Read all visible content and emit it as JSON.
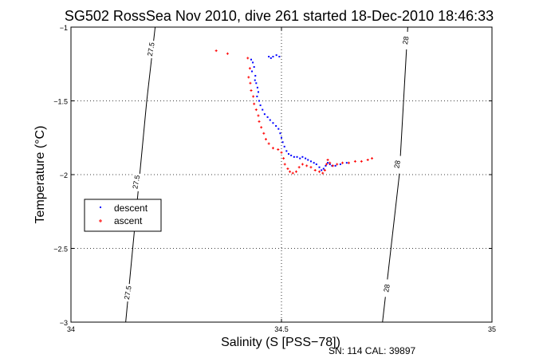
{
  "chart_data": {
    "type": "scatter",
    "title": "SG502 RossSea Nov 2010, dive 261 started 18-Dec-2010 18:46:33",
    "xlabel": "Salinity (S [PSS−78])",
    "ylabel": "Temperature (°C)",
    "xlim": [
      34,
      35
    ],
    "ylim": [
      -3,
      -1
    ],
    "xticks": [
      34,
      34.5,
      35
    ],
    "xtick_labels": [
      "34",
      "34.5",
      "35"
    ],
    "yticks": [
      -3,
      -2.5,
      -2,
      -1.5,
      -1
    ],
    "ytick_labels": [
      "−3",
      "−2.5",
      "−2",
      "−1.5",
      "−1"
    ],
    "grid": true,
    "legend_position": "left-middle",
    "footnote": "SN: 114  CAL: 39897",
    "density_contours": [
      {
        "label": "27.5",
        "points": [
          [
            34.13,
            -3.0
          ],
          [
            34.18,
            -1.5
          ],
          [
            34.2,
            -1.0
          ]
        ],
        "label_points": [
          [
            34.19,
            -1.15
          ],
          [
            34.155,
            -2.05
          ],
          [
            34.135,
            -2.8
          ]
        ]
      },
      {
        "label": "28",
        "points": [
          [
            34.74,
            -3.0
          ],
          [
            34.78,
            -2.0
          ],
          [
            34.8,
            -1.0
          ]
        ],
        "label_points": [
          [
            34.795,
            -1.09
          ],
          [
            34.775,
            -1.93
          ],
          [
            34.75,
            -2.77
          ]
        ]
      }
    ],
    "series": [
      {
        "name": "descent",
        "color": "#0000ff",
        "marker": "dot",
        "points": [
          [
            34.495,
            -1.2
          ],
          [
            34.488,
            -1.19
          ],
          [
            34.48,
            -1.2
          ],
          [
            34.475,
            -1.21
          ],
          [
            34.47,
            -1.2
          ],
          [
            34.428,
            -1.22
          ],
          [
            34.432,
            -1.24
          ],
          [
            34.435,
            -1.27
          ],
          [
            34.43,
            -1.3
          ],
          [
            34.438,
            -1.33
          ],
          [
            34.437,
            -1.36
          ],
          [
            34.44,
            -1.38
          ],
          [
            34.443,
            -1.41
          ],
          [
            34.445,
            -1.44
          ],
          [
            34.442,
            -1.47
          ],
          [
            34.447,
            -1.5
          ],
          [
            34.45,
            -1.53
          ],
          [
            34.455,
            -1.56
          ],
          [
            34.46,
            -1.59
          ],
          [
            34.467,
            -1.61
          ],
          [
            34.473,
            -1.63
          ],
          [
            34.48,
            -1.65
          ],
          [
            34.487,
            -1.67
          ],
          [
            34.493,
            -1.69
          ],
          [
            34.497,
            -1.72
          ],
          [
            34.5,
            -1.75
          ],
          [
            34.503,
            -1.78
          ],
          [
            34.507,
            -1.81
          ],
          [
            34.512,
            -1.84
          ],
          [
            34.517,
            -1.86
          ],
          [
            34.523,
            -1.87
          ],
          [
            34.53,
            -1.88
          ],
          [
            34.537,
            -1.88
          ],
          [
            34.544,
            -1.89
          ],
          [
            34.55,
            -1.88
          ],
          [
            34.557,
            -1.89
          ],
          [
            34.563,
            -1.9
          ],
          [
            34.57,
            -1.91
          ],
          [
            34.577,
            -1.92
          ],
          [
            34.583,
            -1.93
          ],
          [
            34.59,
            -1.95
          ],
          [
            34.595,
            -1.97
          ],
          [
            34.6,
            -1.96
          ],
          [
            34.605,
            -1.94
          ],
          [
            34.61,
            -1.92
          ],
          [
            34.615,
            -1.93
          ],
          [
            34.62,
            -1.94
          ],
          [
            34.628,
            -1.94
          ],
          [
            34.64,
            -1.93
          ],
          [
            34.655,
            -1.92
          ]
        ]
      },
      {
        "name": "ascent",
        "color": "#ff0000",
        "marker": "plus",
        "points": [
          [
            34.345,
            -1.16
          ],
          [
            34.372,
            -1.18
          ],
          [
            34.42,
            -1.21
          ],
          [
            34.425,
            -1.28
          ],
          [
            34.422,
            -1.34
          ],
          [
            34.426,
            -1.38
          ],
          [
            34.428,
            -1.43
          ],
          [
            34.433,
            -1.47
          ],
          [
            34.435,
            -1.52
          ],
          [
            34.44,
            -1.56
          ],
          [
            34.445,
            -1.6
          ],
          [
            34.447,
            -1.64
          ],
          [
            34.452,
            -1.68
          ],
          [
            34.458,
            -1.72
          ],
          [
            34.463,
            -1.76
          ],
          [
            34.47,
            -1.79
          ],
          [
            34.48,
            -1.82
          ],
          [
            34.492,
            -1.83
          ],
          [
            34.5,
            -1.85
          ],
          [
            34.505,
            -1.89
          ],
          [
            34.508,
            -1.93
          ],
          [
            34.515,
            -1.96
          ],
          [
            34.52,
            -1.98
          ],
          [
            34.527,
            -1.99
          ],
          [
            34.535,
            -1.98
          ],
          [
            34.542,
            -1.95
          ],
          [
            34.55,
            -1.93
          ],
          [
            34.56,
            -1.94
          ],
          [
            34.57,
            -1.95
          ],
          [
            34.58,
            -1.97
          ],
          [
            34.59,
            -1.98
          ],
          [
            34.598,
            -1.99
          ],
          [
            34.603,
            -1.97
          ],
          [
            34.607,
            -1.93
          ],
          [
            34.61,
            -1.9
          ],
          [
            34.615,
            -1.92
          ],
          [
            34.622,
            -1.94
          ],
          [
            34.632,
            -1.93
          ],
          [
            34.645,
            -1.92
          ],
          [
            34.66,
            -1.92
          ],
          [
            34.675,
            -1.91
          ],
          [
            34.69,
            -1.91
          ],
          [
            34.705,
            -1.9
          ],
          [
            34.715,
            -1.89
          ]
        ]
      }
    ]
  }
}
